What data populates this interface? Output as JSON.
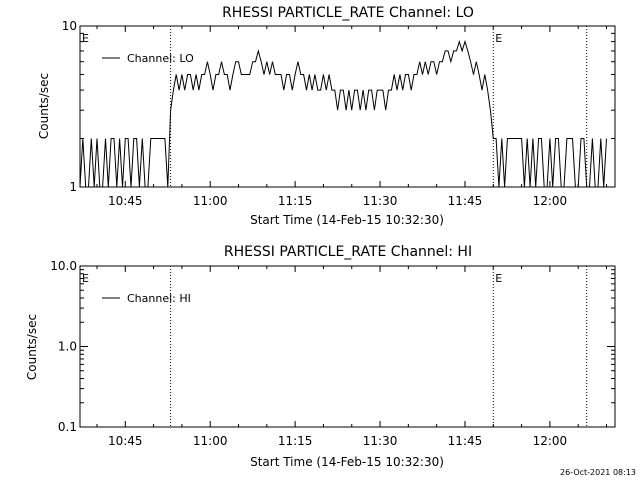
{
  "footer": {
    "timestamp": "26-Oct-2021 08:13"
  },
  "chart_data": [
    {
      "type": "line",
      "title": "RHESSI PARTICLE_RATE Channel: LO",
      "xlabel": "Start Time (14-Feb-15 10:32:30)",
      "ylabel": "Counts/sec",
      "yscale": "log",
      "xlim": [
        "10:37:00",
        "12:11:30"
      ],
      "ylim": [
        1,
        10
      ],
      "x_tick_labels": [
        "10:45",
        "11:00",
        "11:15",
        "11:30",
        "11:45",
        "12:00"
      ],
      "y_tick_labels": [
        "1",
        "10"
      ],
      "legend": {
        "entries": [
          "Channel: LO"
        ],
        "placement": "top-left"
      },
      "markers": [
        {
          "label": "E",
          "x": "10:37:00"
        },
        {
          "label": "",
          "x": "10:53:00"
        },
        {
          "label": "E",
          "x": "11:50:00"
        },
        {
          "label": "",
          "x": "12:06:30"
        }
      ],
      "series": [
        {
          "name": "Channel: LO",
          "x_start": "10:37:00",
          "step_seconds": 30,
          "values": [
            1,
            2,
            1,
            1,
            2,
            1,
            2,
            1,
            1,
            2,
            1,
            2,
            2,
            1,
            2,
            1,
            2,
            2,
            1,
            2,
            2,
            1,
            2,
            1,
            1,
            2,
            2,
            2,
            2,
            2,
            2,
            1,
            3,
            4,
            5,
            4,
            5,
            4,
            5,
            5,
            4,
            5,
            4,
            5,
            5,
            6,
            5,
            4,
            5,
            5,
            6,
            5,
            5,
            4,
            5,
            6,
            6,
            5,
            5,
            5,
            5,
            6,
            6,
            7,
            6,
            5,
            6,
            5,
            6,
            5,
            5,
            5,
            4,
            5,
            5,
            4,
            5,
            6,
            5,
            5,
            4,
            5,
            4,
            5,
            4,
            4,
            5,
            4,
            5,
            4,
            4,
            3,
            4,
            4,
            3,
            4,
            3,
            4,
            4,
            3,
            4,
            3,
            4,
            4,
            3,
            4,
            4,
            4,
            3,
            4,
            4,
            5,
            4,
            5,
            4,
            5,
            5,
            4,
            5,
            5,
            6,
            5,
            6,
            5,
            6,
            6,
            5,
            6,
            6,
            7,
            7,
            6,
            7,
            7,
            8,
            7,
            8,
            7,
            6,
            5,
            6,
            5,
            4,
            5,
            4,
            3,
            2,
            2,
            1,
            2,
            1,
            2,
            2,
            2,
            2,
            2,
            2,
            1,
            2,
            1,
            2,
            1,
            2,
            2,
            1,
            1,
            2,
            1,
            2,
            2,
            1,
            1,
            2,
            2,
            2,
            1,
            1,
            2,
            2,
            1,
            1,
            2,
            1,
            1,
            2,
            1,
            2
          ]
        }
      ]
    },
    {
      "type": "line",
      "title": "RHESSI PARTICLE_RATE Channel: HI",
      "xlabel": "Start Time (14-Feb-15 10:32:30)",
      "ylabel": "Counts/sec",
      "yscale": "log",
      "xlim": [
        "10:37:00",
        "12:11:30"
      ],
      "ylim": [
        0.1,
        10
      ],
      "x_tick_labels": [
        "10:45",
        "11:00",
        "11:15",
        "11:30",
        "11:45",
        "12:00"
      ],
      "y_tick_labels": [
        "0.1",
        "1.0",
        "10.0"
      ],
      "legend": {
        "entries": [
          "Channel: HI"
        ],
        "placement": "top-left"
      },
      "markers": [
        {
          "label": "E",
          "x": "10:37:00"
        },
        {
          "label": "",
          "x": "10:53:00"
        },
        {
          "label": "E",
          "x": "11:50:00"
        },
        {
          "label": "",
          "x": "12:06:30"
        }
      ],
      "series": [
        {
          "name": "Channel: HI",
          "values": []
        }
      ]
    }
  ]
}
